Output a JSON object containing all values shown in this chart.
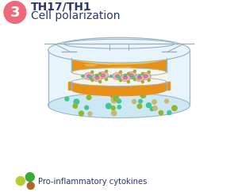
{
  "bg_color": "#ffffff",
  "title_line1": "TH17/TH1",
  "title_line2": "Cell polarization",
  "title_color": "#2d3572",
  "step_number": "3",
  "step_bg": "#f0687a",
  "step_text_color": "#ffffff",
  "legend_text": "Pro-inflammatory cytokines",
  "legend_color": "#2d3572",
  "dot_green_dark": "#3aaa3a",
  "dot_green_light": "#b8cc30",
  "dot_brown": "#b06828",
  "container_edge_color": "#9ab8c8",
  "container_fill": "#e8f4fb",
  "gel_orange": "#e89018",
  "gel_yellow": "#f5c840",
  "gel_light": "#f0d080",
  "membrane_color": "#f8f4e8",
  "fluid_color": "#cce8f5",
  "cell_pink": "#f0b0c0",
  "cell_outline": "#d07090",
  "cell_nucleus": "#c05878",
  "dot_teal": "#40c890",
  "dot_olive": "#90b828",
  "dot_tan": "#c8b870",
  "frame_color": "#9ab0c0",
  "insert_wall": "#b8ccd8"
}
